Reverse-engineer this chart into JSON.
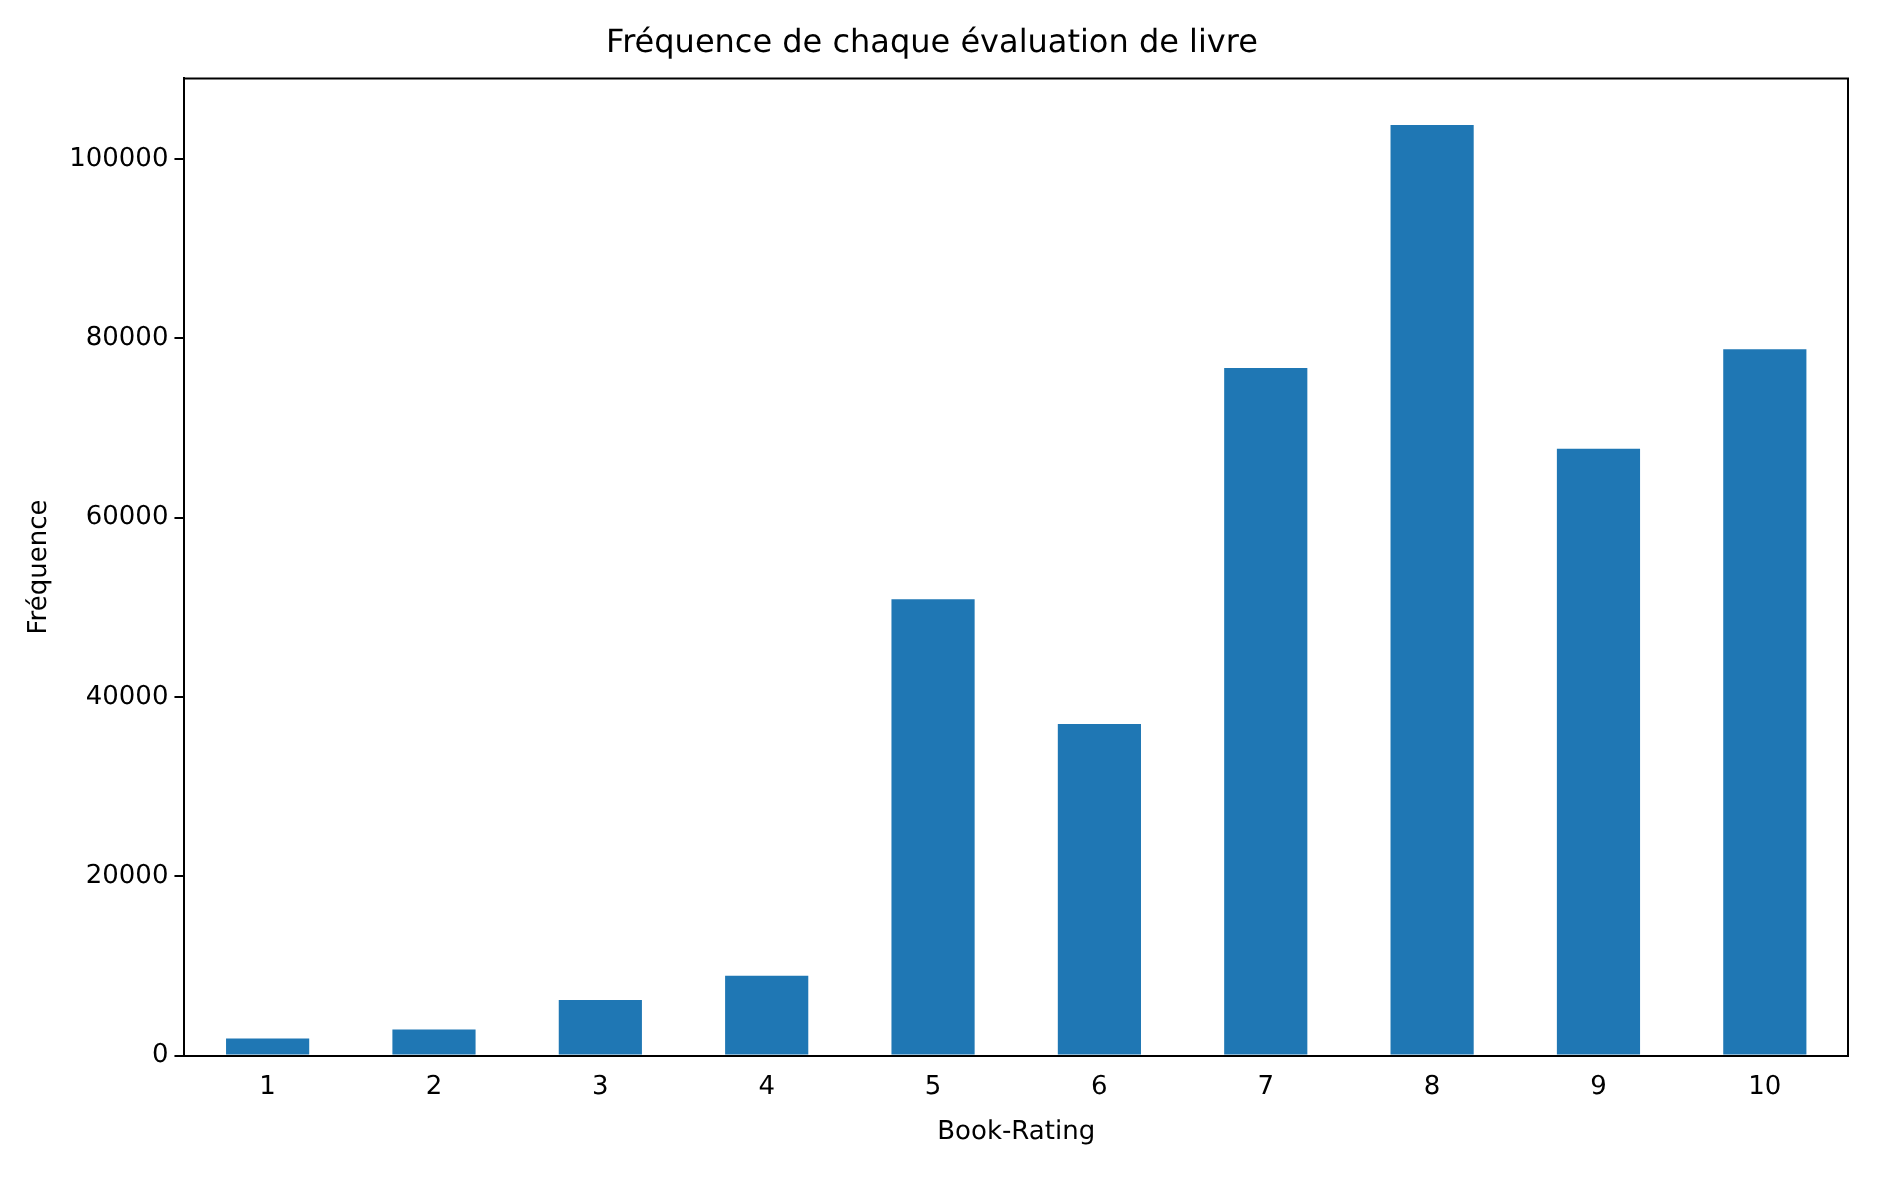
{
  "chart_data": {
    "type": "bar",
    "title": "Fréquence de chaque évaluation de livre",
    "xlabel": "Book-Rating",
    "ylabel": "Fréquence",
    "categories": [
      "1",
      "2",
      "3",
      "4",
      "5",
      "6",
      "7",
      "8",
      "9",
      "10"
    ],
    "values": [
      1900,
      2900,
      6200,
      8900,
      50900,
      37000,
      76700,
      103800,
      67700,
      78800
    ],
    "color": "#1f77b4",
    "ylim": [
      0,
      109000
    ],
    "yticks": [
      0,
      20000,
      40000,
      60000,
      80000,
      100000
    ],
    "grid": false,
    "legend": false
  }
}
